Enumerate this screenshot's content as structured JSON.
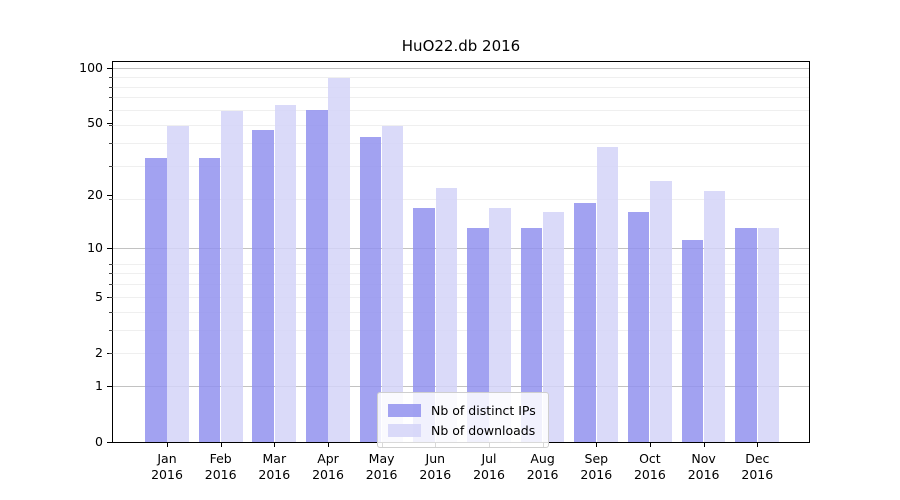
{
  "chart_data": {
    "type": "bar",
    "title": "HuO22.db 2016",
    "categories": [
      "Jan",
      "Feb",
      "Mar",
      "Apr",
      "May",
      "Jun",
      "Jul",
      "Aug",
      "Sep",
      "Oct",
      "Nov",
      "Dec"
    ],
    "category_year": "2016",
    "series": [
      {
        "name": "Nb of distinct IPs",
        "color": "#9292ee",
        "values": [
          32,
          32,
          46,
          59,
          42,
          17,
          13,
          13,
          18,
          16,
          11,
          13
        ]
      },
      {
        "name": "Nb of downloads",
        "color": "#d3d3f8",
        "values": [
          48,
          58,
          63,
          88,
          48,
          22,
          17,
          16,
          37,
          24,
          21,
          13
        ]
      }
    ],
    "yscale": "log1p",
    "yticks": [
      0,
      1,
      2,
      5,
      10,
      20,
      50,
      100
    ],
    "ylim": [
      0,
      107.3
    ],
    "grid": true,
    "gridlines_major": [
      1,
      10,
      100
    ],
    "gridlines_minor": [
      2,
      3,
      4,
      5,
      6,
      7,
      8,
      19,
      29,
      39,
      49,
      59,
      69,
      79,
      89
    ],
    "legend_position": "inside-bottom-center",
    "colors": {
      "grid_major": "#c2c2c2",
      "grid_minor": "#efefef",
      "axis": "#000000",
      "background": "#ffffff"
    }
  }
}
